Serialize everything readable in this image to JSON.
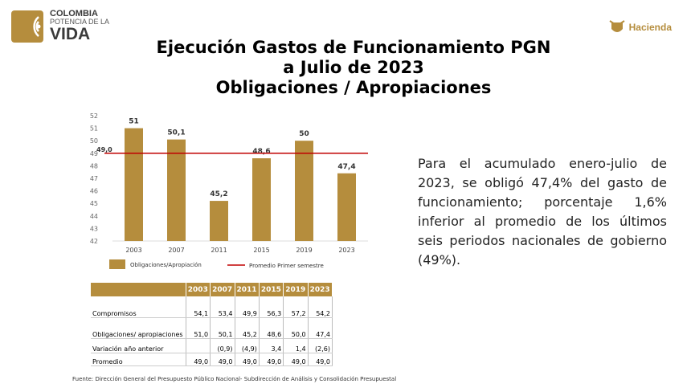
{
  "header": {
    "logo_line1": "COLOMBIA",
    "logo_line2": "POTENCIA DE LA",
    "logo_line3": "VIDA",
    "hacienda": "Hacienda"
  },
  "title": {
    "line1": "Ejecución Gastos de Funcionamiento PGN",
    "line2": "a Julio de 2023",
    "line3": "Obligaciones / Apropiaciones"
  },
  "chart_data": {
    "type": "bar",
    "categories": [
      "2003",
      "2007",
      "2011",
      "2015",
      "2019",
      "2023"
    ],
    "series": [
      {
        "name": "Obligaciones/Apropiación",
        "values": [
          51,
          50.1,
          45.2,
          48.6,
          50,
          47.4
        ],
        "labels": [
          "51",
          "50,1",
          "45,2",
          "48,6",
          "50",
          "47,4"
        ]
      },
      {
        "name": "Promedio Primer semestre",
        "type": "line",
        "value": 49.0,
        "label": "49,0"
      }
    ],
    "ylim": [
      42,
      52
    ],
    "yticks": [
      "42",
      "43",
      "44",
      "45",
      "46",
      "47",
      "48",
      "49",
      "50",
      "51",
      "52"
    ],
    "colors": {
      "bar": "#b58d3d",
      "line": "#c00000"
    },
    "legend": "bottom"
  },
  "paragraph": "Para el acumulado enero-julio de 2023, se obligó 47,4% del gasto de funcionamiento; porcentaje 1,6% inferior al promedio de los últimos seis periodos nacionales de gobierno (49%).",
  "table": {
    "headers": [
      "",
      "2003",
      "2007",
      "2011",
      "2015",
      "2019",
      "2023"
    ],
    "rows": [
      [
        "Compromisos",
        "54,1",
        "53,4",
        "49,9",
        "56,3",
        "57,2",
        "54,2"
      ],
      [
        "Obligaciones/ apropiaciones",
        "51,0",
        "50,1",
        "45,2",
        "48,6",
        "50,0",
        "47,4"
      ],
      [
        "Variación año anterior",
        "",
        "(0,9)",
        "(4,9)",
        "3,4",
        "1,4",
        "(2,6)"
      ],
      [
        "Promedio",
        "49,0",
        "49,0",
        "49,0",
        "49,0",
        "49,0",
        "49,0"
      ]
    ]
  },
  "source": "Fuente: Dirección General del Presupuesto Público Nacional- Subdirección de Análisis y Consolidación Presupuestal"
}
